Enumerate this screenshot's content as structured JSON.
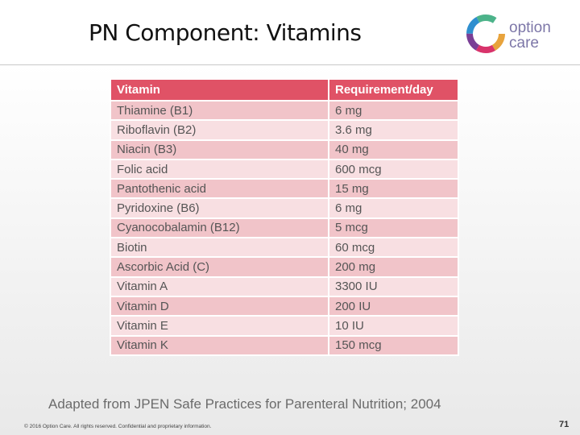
{
  "header": {
    "title": "PN Component:  Vitamins",
    "logo": [
      "option",
      "care"
    ]
  },
  "table": {
    "columns": [
      "Vitamin",
      "Requirement/day"
    ],
    "rows": [
      [
        "Thiamine (B1)",
        "6 mg"
      ],
      [
        "Riboflavin (B2)",
        "3.6 mg"
      ],
      [
        "Niacin (B3)",
        "40 mg"
      ],
      [
        "Folic acid",
        "600 mcg"
      ],
      [
        "Pantothenic acid",
        "15 mg"
      ],
      [
        "Pyridoxine (B6)",
        "6 mg"
      ],
      [
        "Cyanocobalamin (B12)",
        "5 mcg"
      ],
      [
        "Biotin",
        "60 mcg"
      ],
      [
        "Ascorbic Acid (C)",
        "200 mg"
      ],
      [
        "Vitamin A",
        "3300 IU"
      ],
      [
        "Vitamin D",
        "200 IU"
      ],
      [
        "Vitamin E",
        "10 IU"
      ],
      [
        "Vitamin K",
        "150 mcg"
      ]
    ]
  },
  "source": "Adapted from JPEN Safe Practices for Parenteral Nutrition; 2004",
  "footer": {
    "copyright": "© 2016 Option Care. All rights reserved. Confidential and proprietary information.",
    "page": "71"
  }
}
